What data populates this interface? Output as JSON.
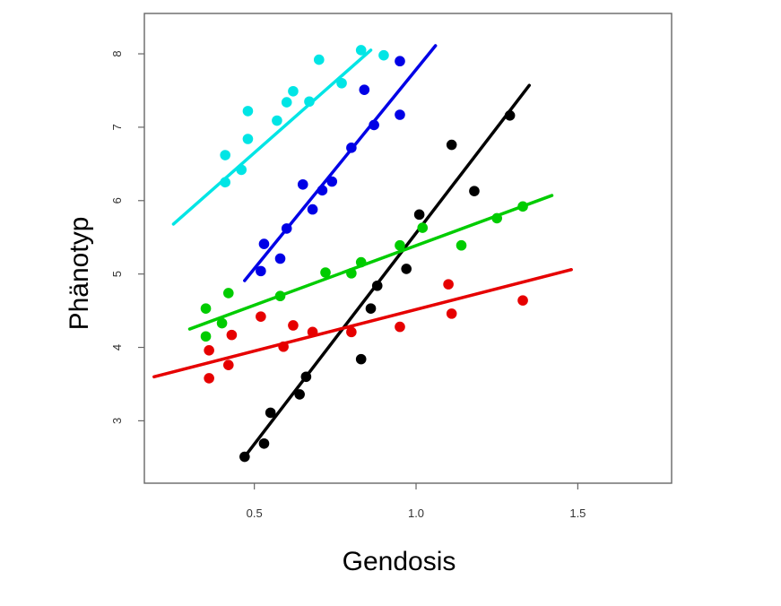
{
  "chart_data": {
    "type": "scatter",
    "xlabel": "Gendosis",
    "ylabel": "Phänotyp",
    "xlim": [
      0.16,
      1.79
    ],
    "ylim": [
      2.15,
      8.55
    ],
    "xticks": [
      0.5,
      1.0,
      1.5
    ],
    "xtick_labels": [
      "0.5",
      "1.0",
      "1.5"
    ],
    "yticks": [
      3,
      4,
      5,
      6,
      7,
      8
    ],
    "ytick_labels": [
      "3",
      "4",
      "5",
      "6",
      "7",
      "8"
    ],
    "grid": false,
    "legend": "none",
    "series": [
      {
        "color": "#00e5e5",
        "points": [
          [
            0.41,
            6.25
          ],
          [
            0.41,
            6.62
          ],
          [
            0.46,
            6.42
          ],
          [
            0.48,
            6.84
          ],
          [
            0.48,
            7.22
          ],
          [
            0.57,
            7.09
          ],
          [
            0.6,
            7.34
          ],
          [
            0.62,
            7.49
          ],
          [
            0.67,
            7.35
          ],
          [
            0.7,
            7.92
          ],
          [
            0.77,
            7.6
          ],
          [
            0.83,
            8.05
          ],
          [
            0.9,
            7.98
          ]
        ],
        "fit": [
          [
            0.25,
            5.68
          ],
          [
            0.86,
            8.05
          ]
        ]
      },
      {
        "color": "#0000e6",
        "points": [
          [
            0.52,
            5.04
          ],
          [
            0.53,
            5.41
          ],
          [
            0.58,
            5.21
          ],
          [
            0.6,
            5.62
          ],
          [
            0.65,
            6.22
          ],
          [
            0.68,
            5.88
          ],
          [
            0.71,
            6.14
          ],
          [
            0.74,
            6.26
          ],
          [
            0.8,
            6.72
          ],
          [
            0.84,
            7.51
          ],
          [
            0.87,
            7.03
          ],
          [
            0.95,
            7.9
          ],
          [
            0.95,
            7.17
          ]
        ],
        "fit": [
          [
            0.47,
            4.91
          ],
          [
            1.06,
            8.11
          ]
        ]
      },
      {
        "color": "#000000",
        "points": [
          [
            0.47,
            2.51
          ],
          [
            0.53,
            2.69
          ],
          [
            0.55,
            3.11
          ],
          [
            0.64,
            3.36
          ],
          [
            0.66,
            3.6
          ],
          [
            0.83,
            3.84
          ],
          [
            0.86,
            4.53
          ],
          [
            0.88,
            4.84
          ],
          [
            0.97,
            5.07
          ],
          [
            1.01,
            5.81
          ],
          [
            1.11,
            6.76
          ],
          [
            1.18,
            6.13
          ],
          [
            1.29,
            7.16
          ]
        ],
        "fit": [
          [
            0.47,
            2.51
          ],
          [
            1.35,
            7.57
          ]
        ]
      },
      {
        "color": "#00cc00",
        "points": [
          [
            0.35,
            4.15
          ],
          [
            0.35,
            4.53
          ],
          [
            0.4,
            4.33
          ],
          [
            0.42,
            4.74
          ],
          [
            0.58,
            4.7
          ],
          [
            0.72,
            5.02
          ],
          [
            0.8,
            5.01
          ],
          [
            0.83,
            5.16
          ],
          [
            0.95,
            5.39
          ],
          [
            1.02,
            5.63
          ],
          [
            1.14,
            5.39
          ],
          [
            1.25,
            5.76
          ],
          [
            1.33,
            5.92
          ]
        ],
        "fit": [
          [
            0.3,
            4.25
          ],
          [
            1.42,
            6.07
          ]
        ]
      },
      {
        "color": "#e60000",
        "points": [
          [
            0.36,
            3.58
          ],
          [
            0.36,
            3.96
          ],
          [
            0.42,
            3.76
          ],
          [
            0.43,
            4.17
          ],
          [
            0.52,
            4.42
          ],
          [
            0.59,
            4.01
          ],
          [
            0.62,
            4.3
          ],
          [
            0.68,
            4.21
          ],
          [
            0.8,
            4.21
          ],
          [
            0.95,
            4.28
          ],
          [
            1.1,
            4.86
          ],
          [
            1.11,
            4.46
          ],
          [
            1.33,
            4.64
          ]
        ],
        "fit": [
          [
            0.19,
            3.6
          ],
          [
            1.48,
            5.06
          ]
        ]
      }
    ]
  }
}
